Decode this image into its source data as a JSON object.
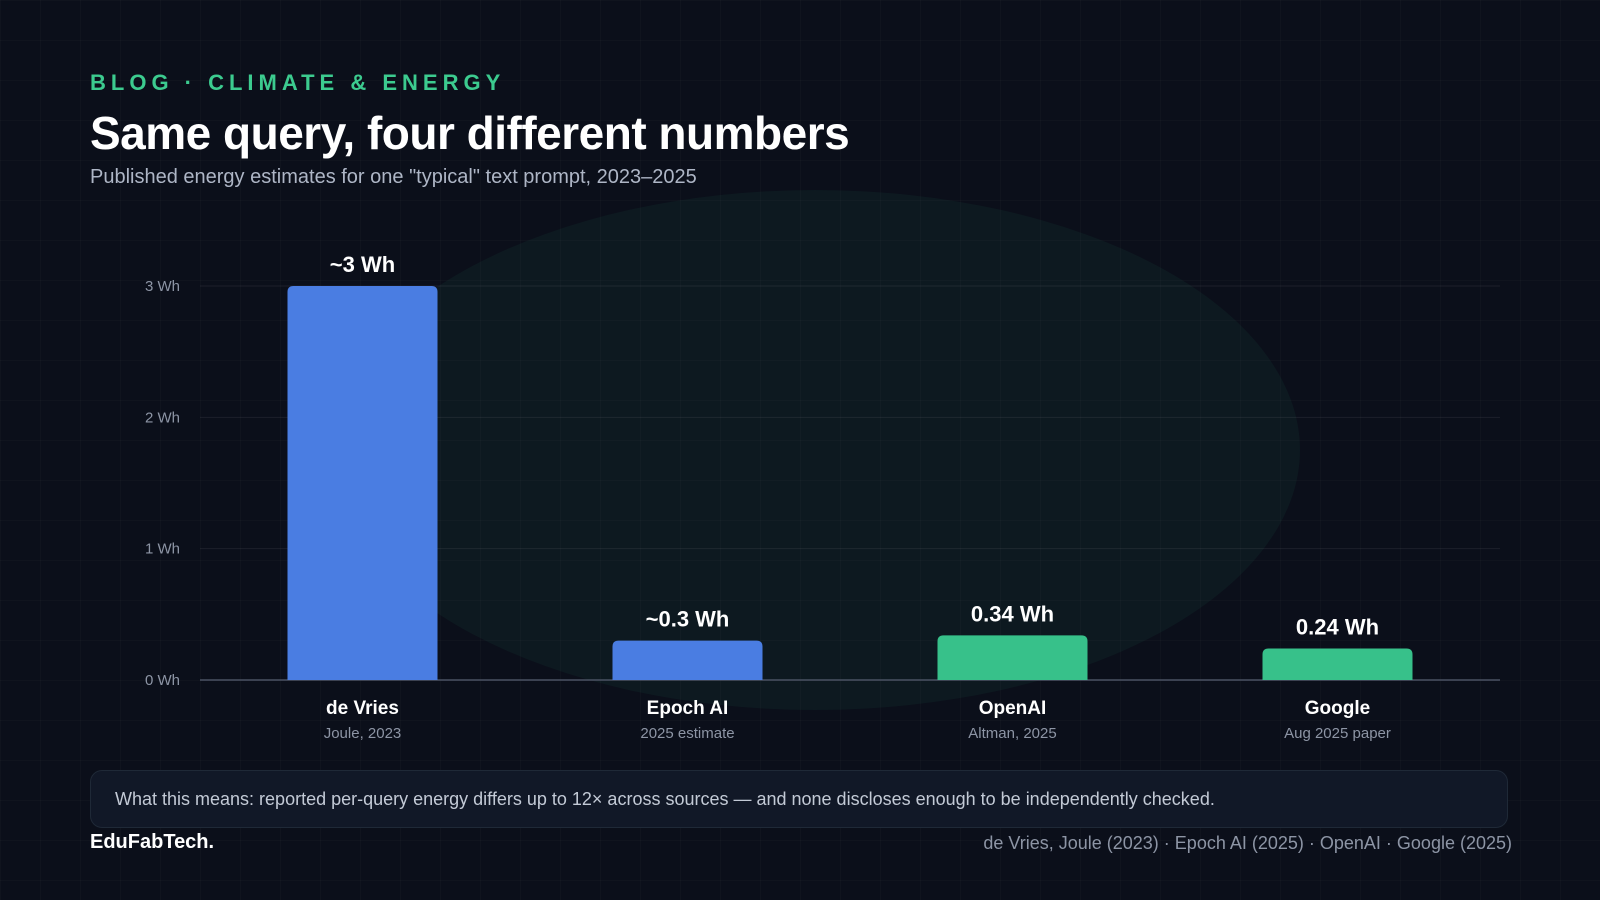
{
  "header": {
    "eyebrow": "BLOG · CLIMATE & ENERGY",
    "title": "Same query, four different numbers",
    "subtitle": "Published energy estimates for one \"typical\" text prompt, 2023–2025"
  },
  "chart_data": {
    "type": "bar",
    "title": "Same query, four different numbers",
    "subtitle": "Published energy estimates for one \"typical\" text prompt, 2023–2025",
    "categories": [
      "de Vries",
      "Epoch AI",
      "OpenAI",
      "Google"
    ],
    "category_sublabels": [
      "Joule, 2023",
      "2025 estimate",
      "Altman, 2025",
      "Aug 2025 paper"
    ],
    "values": [
      3,
      0.3,
      0.34,
      0.24
    ],
    "value_labels": [
      "~3 Wh",
      "~0.3 Wh",
      "0.34 Wh",
      "0.24 Wh"
    ],
    "bar_colors": [
      "#4a7de2",
      "#4a7de2",
      "#37c18a",
      "#37c18a"
    ],
    "ylim": [
      0,
      3
    ],
    "yticks": [
      0,
      1,
      2,
      3
    ],
    "ytick_labels": [
      "0 Wh",
      "1 Wh",
      "2 Wh",
      "3 Wh"
    ],
    "xlabel": "",
    "ylabel": "",
    "grid": true
  },
  "callout": {
    "text": "What this means: reported per-query energy differs up to 12× across sources — and none discloses enough to be independently checked."
  },
  "footer": {
    "brand": "EduFabTech.",
    "sources": "de Vries, Joule (2023) · Epoch AI (2025) · OpenAI · Google (2025)"
  },
  "colors": {
    "accent": "#3ccb8f",
    "background": "#0b0f1a",
    "blue_bar": "#4a7de2",
    "green_bar": "#37c18a"
  }
}
